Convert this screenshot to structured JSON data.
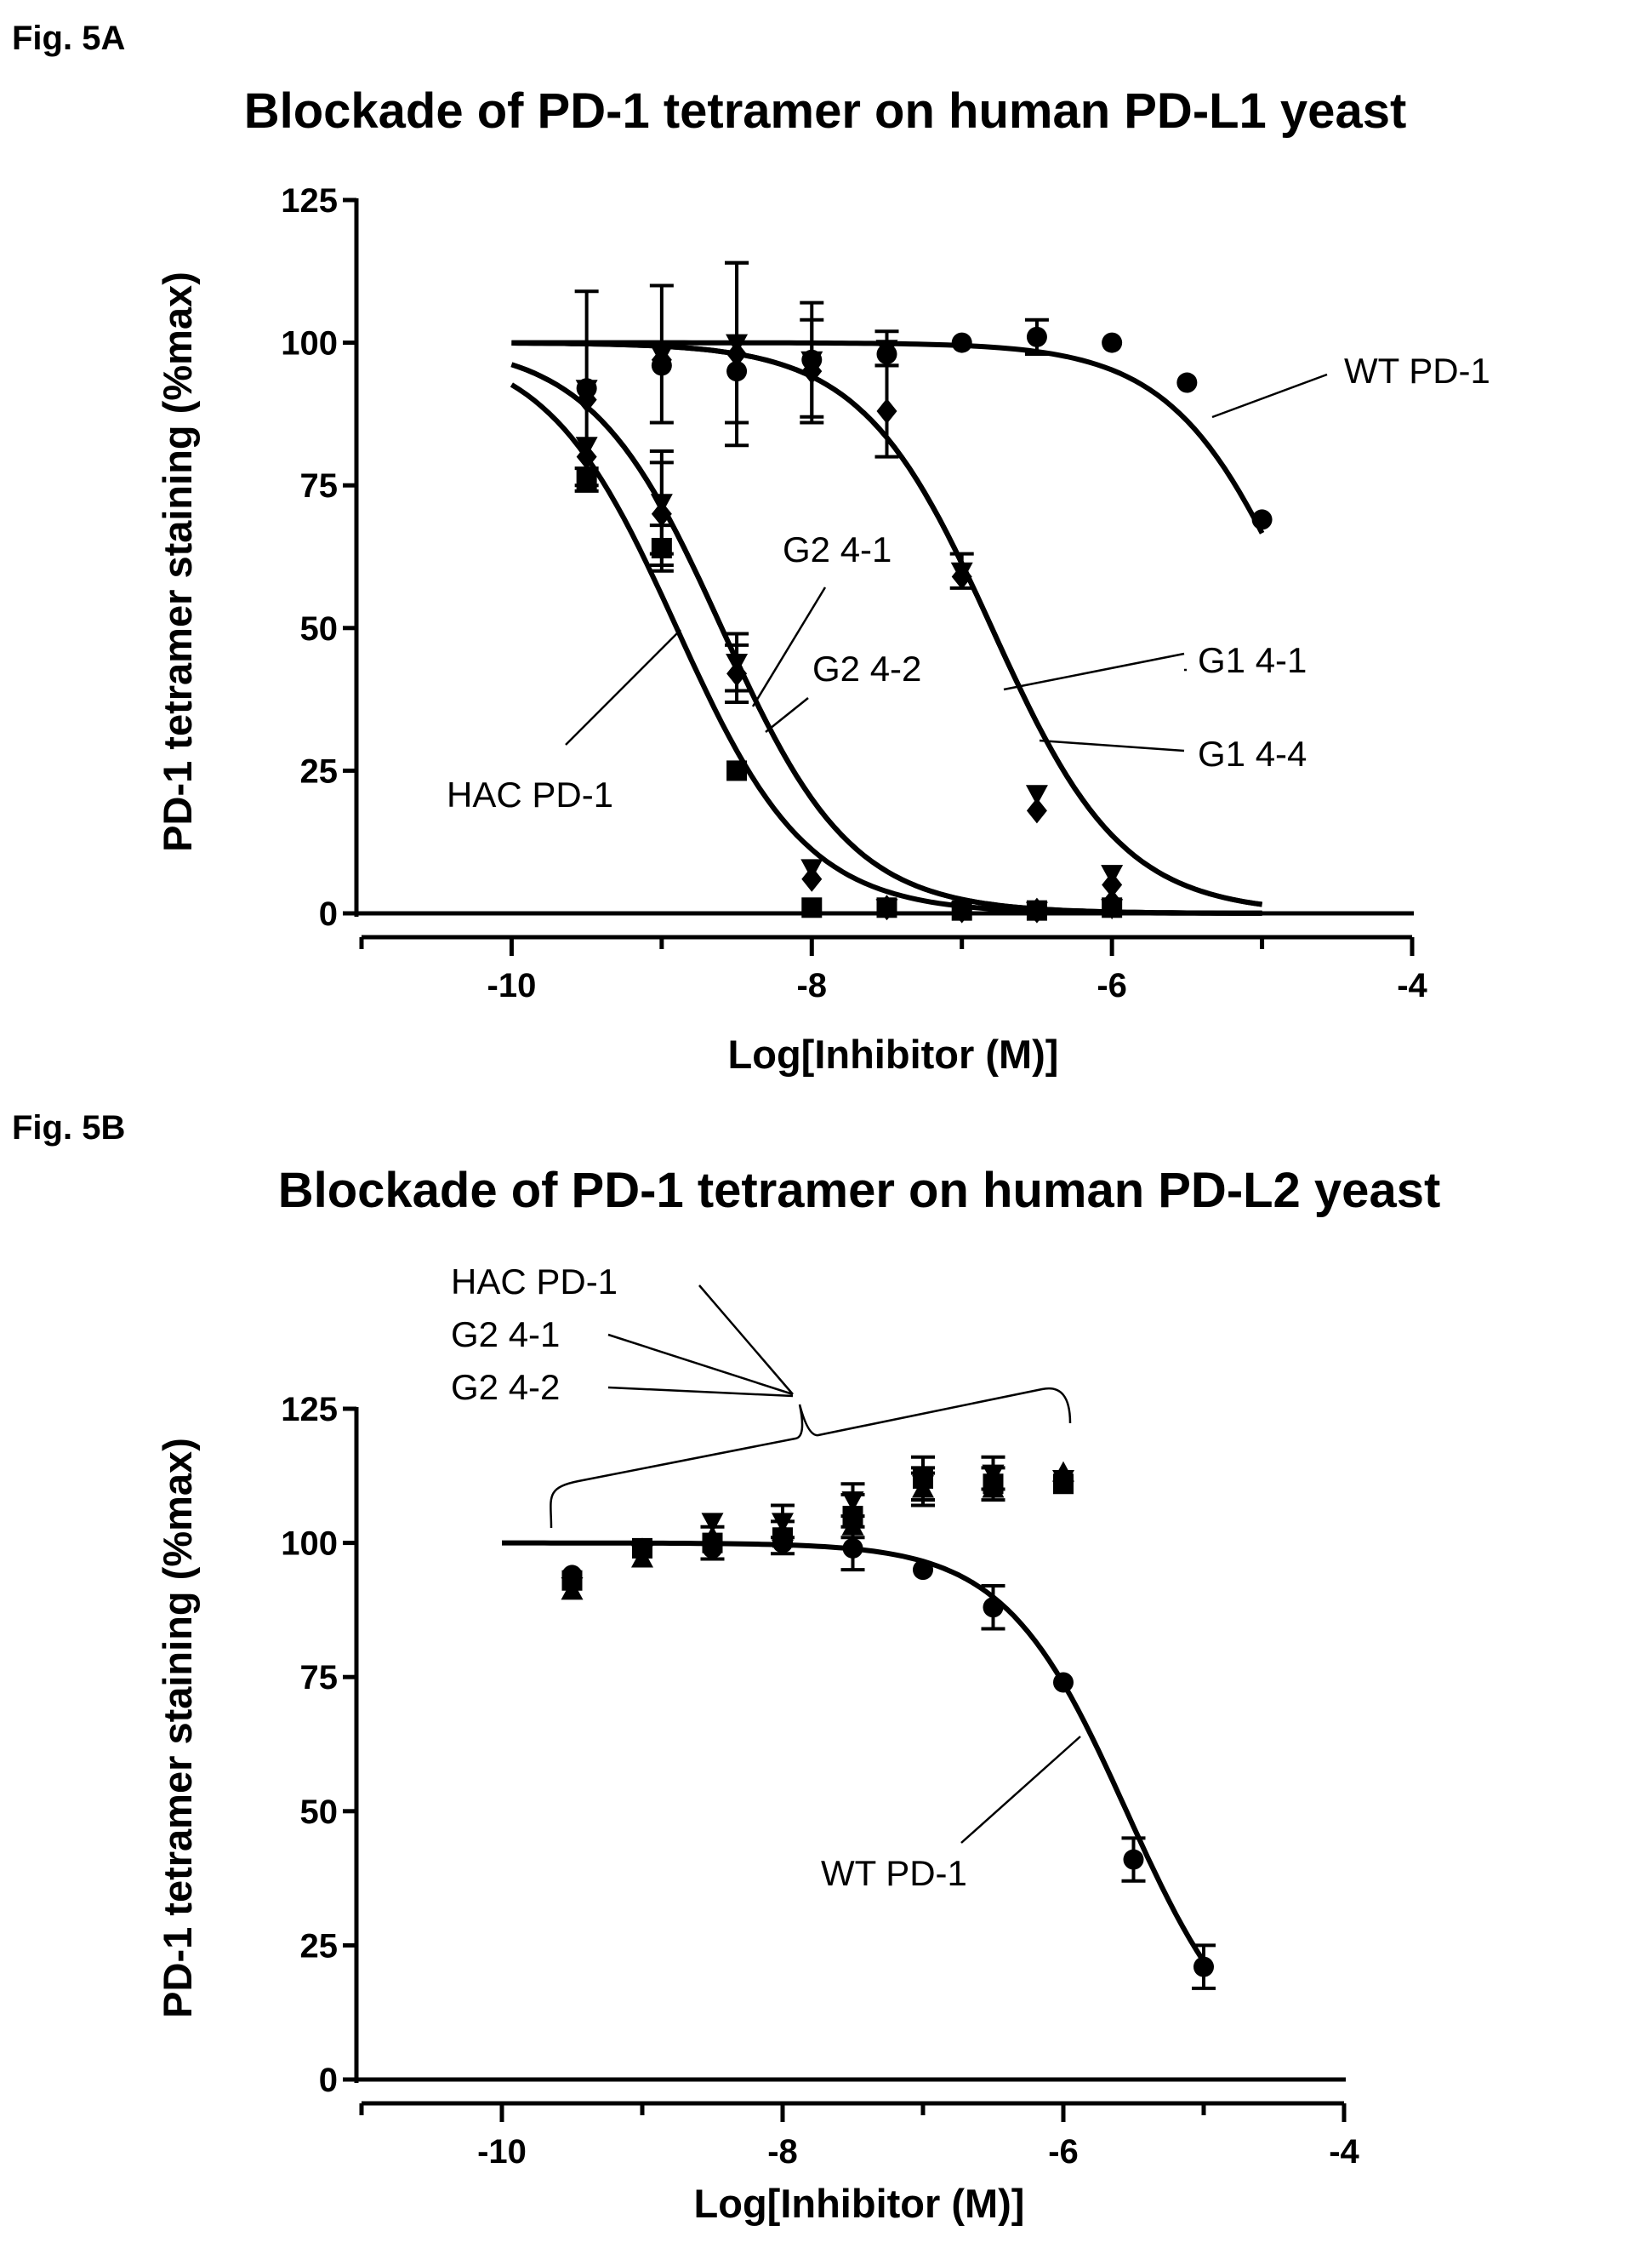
{
  "chart_data": [
    {
      "type": "scatter",
      "figure_label": "Fig. 5A",
      "title": "Blockade of PD-1 tetramer on human PD-L1 yeast",
      "xlabel": "Log[Inhibitor (M)]",
      "ylabel": "PD-1 tetramer staining (%max)",
      "xlim": [
        -11,
        -4
      ],
      "ylim": [
        0,
        125
      ],
      "xticks": [
        -10,
        -8,
        -6,
        -4
      ],
      "yticks": [
        0,
        25,
        50,
        75,
        100,
        125
      ],
      "grid": false,
      "series": [
        {
          "name": "WT PD-1",
          "marker": "circle",
          "points": [
            [
              -9.5,
              92,
              0
            ],
            [
              -9,
              96,
              0
            ],
            [
              -8.5,
              95,
              0
            ],
            [
              -8,
              97,
              0
            ],
            [
              -7.5,
              98,
              0
            ],
            [
              -7,
              100,
              0
            ],
            [
              -6.5,
              101,
              3
            ],
            [
              -6,
              100,
              0
            ],
            [
              -5.5,
              93,
              0
            ],
            [
              -5,
              69,
              0
            ]
          ],
          "fit": {
            "top": 100,
            "bottom": 0,
            "logIC50": -4.7,
            "hill": 1
          }
        },
        {
          "name": "G1 4-1",
          "marker": "triangle-down",
          "points": [
            [
              -9.5,
              92,
              17
            ],
            [
              -9,
              98,
              12
            ],
            [
              -8.5,
              100,
              14
            ],
            [
              -8,
              97,
              10
            ],
            [
              -7.5,
              99,
              3
            ],
            [
              -7,
              60,
              3
            ],
            [
              -6.5,
              21,
              0
            ],
            [
              -6,
              7,
              0
            ]
          ],
          "fit": {
            "top": 100,
            "bottom": 0,
            "logIC50": -6.8,
            "hill": 1
          }
        },
        {
          "name": "G1 4-4",
          "marker": "diamond",
          "points": [
            [
              -9.5,
              90,
              0
            ],
            [
              -9,
              97,
              0
            ],
            [
              -8.5,
              98,
              16
            ],
            [
              -8,
              95,
              9
            ],
            [
              -7.5,
              88,
              8
            ],
            [
              -7,
              59,
              0
            ],
            [
              -6.5,
              18,
              0
            ],
            [
              -6,
              5,
              0
            ]
          ],
          "fit": {
            "top": 100,
            "bottom": 0,
            "logIC50": -6.8,
            "hill": 1
          }
        },
        {
          "name": "G2 4-1",
          "marker": "triangle-down",
          "points": [
            [
              -9.5,
              82,
              0
            ],
            [
              -9,
              72,
              9
            ],
            [
              -8.5,
              44,
              5
            ],
            [
              -8,
              8,
              0
            ],
            [
              -7.5,
              1,
              0
            ],
            [
              -7,
              0.5,
              0
            ],
            [
              -6.5,
              0.5,
              0
            ],
            [
              -6,
              1,
              0
            ]
          ],
          "fit": {
            "top": 100,
            "bottom": 0,
            "logIC50": -8.6,
            "hill": 1
          }
        },
        {
          "name": "G2 4-2",
          "marker": "diamond",
          "points": [
            [
              -9.5,
              80,
              0
            ],
            [
              -9,
              70,
              9
            ],
            [
              -8.5,
              42,
              5
            ],
            [
              -8,
              6,
              0
            ],
            [
              -7.5,
              1,
              0
            ],
            [
              -7,
              0.5,
              0
            ],
            [
              -6.5,
              0.5,
              0
            ],
            [
              -6,
              2,
              0
            ]
          ],
          "fit": {
            "top": 100,
            "bottom": 0,
            "logIC50": -8.6,
            "hill": 1
          }
        },
        {
          "name": "HAC PD-1",
          "marker": "square",
          "points": [
            [
              -9.5,
              76,
              2
            ],
            [
              -9,
              64,
              4
            ],
            [
              -8.5,
              25,
              0
            ],
            [
              -8,
              1,
              0
            ],
            [
              -7.5,
              1,
              0
            ],
            [
              -7,
              0.5,
              0
            ],
            [
              -6.5,
              0.5,
              0
            ],
            [
              -6,
              1,
              0
            ]
          ],
          "fit": {
            "top": 100,
            "bottom": 0,
            "logIC50": -8.9,
            "hill": 1
          }
        }
      ],
      "annotations": [
        "WT PD-1",
        "G2 4-1",
        "G2 4-2",
        "HAC PD-1",
        "G1 4-1",
        "G1 4-4"
      ]
    },
    {
      "type": "scatter",
      "figure_label": "Fig. 5B",
      "title": "Blockade of PD-1 tetramer on human PD-L2 yeast",
      "xlabel": "Log[Inhibitor (M)]",
      "ylabel": "PD-1 tetramer staining (%max)",
      "xlim": [
        -11,
        -4
      ],
      "ylim": [
        0,
        125
      ],
      "xticks": [
        -10,
        -8,
        -6,
        -4
      ],
      "yticks": [
        0,
        25,
        50,
        75,
        100,
        125
      ],
      "grid": false,
      "series": [
        {
          "name": "WT PD-1",
          "marker": "circle",
          "points": [
            [
              -9.5,
              94,
              0
            ],
            [
              -9,
              99,
              0
            ],
            [
              -8.5,
              99,
              0
            ],
            [
              -8,
              100,
              0
            ],
            [
              -7.5,
              99,
              4
            ],
            [
              -7,
              95,
              0
            ],
            [
              -6.5,
              88,
              4
            ],
            [
              -6,
              74,
              0
            ],
            [
              -5.5,
              41,
              4
            ],
            [
              -5,
              21,
              4
            ]
          ],
          "fit": {
            "top": 100,
            "bottom": 0,
            "logIC50": -5.55,
            "hill": 1
          }
        },
        {
          "name": "HAC PD-1",
          "marker": "square",
          "points": [
            [
              -9.5,
              93,
              0
            ],
            [
              -9,
              99,
              0
            ],
            [
              -8.5,
              100,
              3
            ],
            [
              -8,
              101,
              3
            ],
            [
              -7.5,
              105,
              4
            ],
            [
              -7,
              112,
              4
            ],
            [
              -6.5,
              111,
              3
            ],
            [
              -6,
              111,
              0
            ]
          ]
        },
        {
          "name": "G2 4-1",
          "marker": "triangle-down",
          "points": [
            [
              -9.5,
              92,
              0
            ],
            [
              -9,
              98,
              0
            ],
            [
              -8.5,
              104,
              0
            ],
            [
              -8,
              104,
              3
            ],
            [
              -7.5,
              108,
              3
            ],
            [
              -7,
              111,
              3
            ],
            [
              -6.5,
              113,
              3
            ],
            [
              -6,
              112,
              0
            ]
          ]
        },
        {
          "name": "G2 4-2",
          "marker": "triangle-up",
          "points": [
            [
              -9.5,
              91,
              0
            ],
            [
              -9,
              97,
              0
            ],
            [
              -8.5,
              101,
              0
            ],
            [
              -8,
              102,
              0
            ],
            [
              -7.5,
              103,
              0
            ],
            [
              -7,
              110,
              3
            ],
            [
              -6.5,
              110,
              0
            ],
            [
              -6,
              113,
              0
            ]
          ]
        }
      ],
      "annotations": [
        "HAC PD-1",
        "G2 4-1",
        "G2 4-2",
        "WT PD-1"
      ]
    }
  ]
}
